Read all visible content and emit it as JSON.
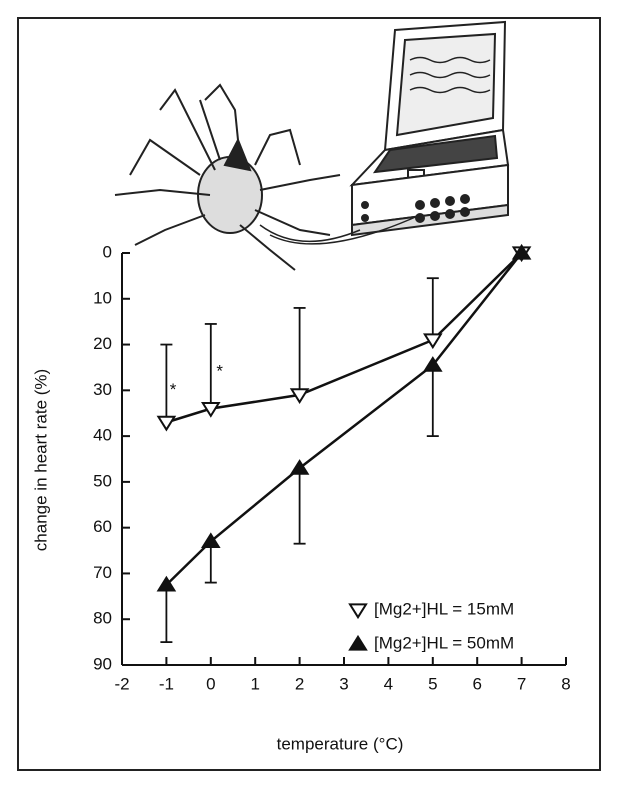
{
  "chart_data": {
    "type": "line",
    "x_label": "temperature (°C)",
    "y_label": "change in heart rate (%)",
    "x": [
      -1,
      0,
      2,
      5,
      7
    ],
    "series": [
      {
        "name": "[Mg2+]HL = 15mM",
        "color": "#111111",
        "marker": "triangle-down-open",
        "values": [
          37,
          34,
          31,
          19,
          0
        ],
        "errors": [
          17,
          18.5,
          19,
          13.5,
          null
        ],
        "error_side": "minus"
      },
      {
        "name": "[Mg2+]HL = 50mM",
        "color": "#111111",
        "marker": "triangle-up-filled",
        "values": [
          72.5,
          63,
          47,
          24.5,
          0
        ],
        "errors": [
          12.5,
          9,
          16.5,
          15.5,
          null
        ],
        "error_side": "plus"
      }
    ],
    "annotations": [
      {
        "text": "*",
        "x": -0.85,
        "y": 30
      },
      {
        "text": "*",
        "x": 0.2,
        "y": 26
      }
    ],
    "xlim": [
      -2,
      8
    ],
    "xticks": [
      -2,
      -1,
      0,
      1,
      2,
      3,
      4,
      5,
      6,
      7,
      8
    ],
    "ylim": [
      0,
      90
    ],
    "yticks": [
      0,
      10,
      20,
      30,
      40,
      50,
      60,
      70,
      80,
      90
    ],
    "y_inverted": true,
    "legend": "lower right"
  }
}
